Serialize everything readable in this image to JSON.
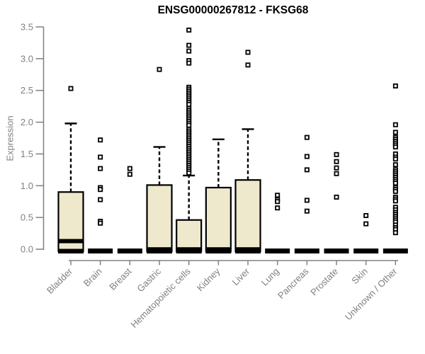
{
  "chart_data": {
    "type": "boxplot",
    "title": "ENSG00000267812 - FKSG68",
    "xlabel": "",
    "ylabel": "Expression",
    "ylim": [
      0,
      3.5
    ],
    "yticks": [
      "0.0",
      "0.5",
      "1.0",
      "1.5",
      "2.0",
      "2.5",
      "3.0",
      "3.5"
    ],
    "grid": false,
    "legend": "none",
    "categories": [
      "Bladder",
      "Brain",
      "Breast",
      "Gastric",
      "Hematopoietic cells",
      "Kidney",
      "Liver",
      "Lung",
      "Pancreas",
      "Prostate",
      "Skin",
      "Unknown / Other"
    ],
    "boxes": [
      {
        "category": "Bladder",
        "collapsed": false,
        "q1": 0.0,
        "median": 0.15,
        "q3": 0.9,
        "whisker_low": 0.0,
        "whisker_high": 1.98,
        "outliers": [
          2.53
        ]
      },
      {
        "category": "Brain",
        "collapsed": true,
        "q1": 0.0,
        "median": 0.0,
        "q3": 0.0,
        "whisker_low": 0.0,
        "whisker_high": 0.0,
        "outliers": [
          1.72,
          1.45,
          1.27,
          0.97,
          0.94,
          0.78,
          0.44,
          0.41
        ]
      },
      {
        "category": "Breast",
        "collapsed": true,
        "q1": 0.0,
        "median": 0.0,
        "q3": 0.0,
        "whisker_low": 0.0,
        "whisker_high": 0.0,
        "outliers": [
          1.27,
          1.18
        ]
      },
      {
        "category": "Gastric",
        "collapsed": false,
        "q1": 0.0,
        "median": 0.02,
        "q3": 1.01,
        "whisker_low": 0.0,
        "whisker_high": 1.61,
        "outliers": [
          2.83
        ]
      },
      {
        "category": "Hematopoietic cells",
        "collapsed": false,
        "q1": 0.0,
        "median": 0.02,
        "q3": 0.46,
        "whisker_low": 0.0,
        "whisker_high": 1.16,
        "outliers": [
          3.45,
          3.21,
          3.12,
          2.97,
          2.93,
          2.55,
          2.52,
          2.49,
          2.46,
          2.43,
          2.4,
          2.37,
          2.34,
          2.31,
          2.28,
          2.22,
          2.19,
          2.16,
          2.13,
          2.1,
          2.07,
          2.04,
          2.01,
          1.98,
          1.95,
          1.89,
          1.86,
          1.83,
          1.8,
          1.77,
          1.74,
          1.71,
          1.68,
          1.65,
          1.62,
          1.59,
          1.56,
          1.53,
          1.5,
          1.47,
          1.44,
          1.41,
          1.38,
          1.35,
          1.32,
          1.29,
          1.26,
          1.23,
          1.2
        ]
      },
      {
        "category": "Kidney",
        "collapsed": false,
        "q1": 0.0,
        "median": 0.02,
        "q3": 0.97,
        "whisker_low": 0.0,
        "whisker_high": 1.73,
        "outliers": []
      },
      {
        "category": "Liver",
        "collapsed": false,
        "q1": 0.0,
        "median": 0.02,
        "q3": 1.09,
        "whisker_low": 0.0,
        "whisker_high": 1.89,
        "outliers": [
          3.1,
          2.9
        ]
      },
      {
        "category": "Lung",
        "collapsed": true,
        "q1": 0.0,
        "median": 0.0,
        "q3": 0.0,
        "whisker_low": 0.0,
        "whisker_high": 0.0,
        "outliers": [
          0.85,
          0.78,
          0.75,
          0.65
        ]
      },
      {
        "category": "Pancreas",
        "collapsed": true,
        "q1": 0.0,
        "median": 0.0,
        "q3": 0.0,
        "whisker_low": 0.0,
        "whisker_high": 0.0,
        "outliers": [
          1.76,
          1.46,
          1.25,
          0.77,
          0.6
        ]
      },
      {
        "category": "Prostate",
        "collapsed": true,
        "q1": 0.0,
        "median": 0.0,
        "q3": 0.0,
        "whisker_low": 0.0,
        "whisker_high": 0.0,
        "outliers": [
          1.49,
          1.38,
          1.28,
          1.19,
          0.82
        ]
      },
      {
        "category": "Skin",
        "collapsed": true,
        "q1": 0.0,
        "median": 0.0,
        "q3": 0.0,
        "whisker_low": 0.0,
        "whisker_high": 0.0,
        "outliers": [
          0.53,
          0.4
        ]
      },
      {
        "category": "Unknown / Other",
        "collapsed": true,
        "q1": 0.0,
        "median": 0.0,
        "q3": 0.0,
        "whisker_low": 0.0,
        "whisker_high": 0.0,
        "outliers": [
          2.57,
          1.96,
          1.84,
          1.76,
          1.73,
          1.7,
          1.67,
          1.64,
          1.61,
          1.5,
          1.45,
          1.42,
          1.33,
          1.25,
          1.22,
          1.19,
          1.16,
          1.13,
          1.1,
          1.07,
          1.04,
          0.97,
          0.94,
          0.91,
          0.82,
          0.79,
          0.76,
          0.66,
          0.62,
          0.58,
          0.55,
          0.52,
          0.49,
          0.46,
          0.43,
          0.38,
          0.34,
          0.31,
          0.26
        ]
      }
    ],
    "colors": {
      "box_fill": "#EEE8CD",
      "box_stroke": "#000000",
      "axis": "#808080",
      "tick_label": "#808080",
      "title": "#000000",
      "background": "#ffffff"
    }
  }
}
